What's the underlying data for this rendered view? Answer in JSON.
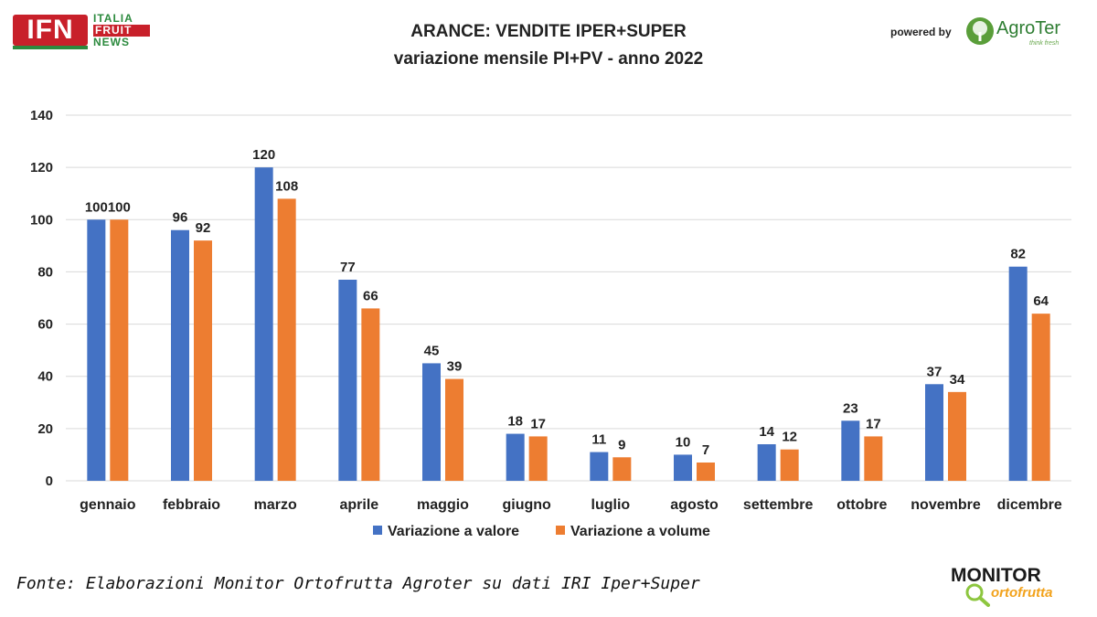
{
  "header": {
    "logo_left": {
      "main": "IFN",
      "line1": "ITALIA",
      "line2": "FRUIT",
      "line3": "NEWS"
    },
    "title_line1": "ARANCE: VENDITE IPER+SUPER",
    "title_line2": "variazione mensile PI+PV - anno 2022",
    "powered_by": "powered by",
    "logo_right": {
      "name": "AgroTer",
      "tagline": "think fresh"
    }
  },
  "chart_data": {
    "type": "bar",
    "categories": [
      "gennaio",
      "febbraio",
      "marzo",
      "aprile",
      "maggio",
      "giugno",
      "luglio",
      "agosto",
      "settembre",
      "ottobre",
      "novembre",
      "dicembre"
    ],
    "series": [
      {
        "name": "Variazione a valore",
        "color": "#4472c4",
        "values": [
          100,
          96,
          120,
          77,
          45,
          18,
          11,
          10,
          14,
          23,
          37,
          82
        ],
        "labels": [
          "100",
          "96",
          "120",
          "77",
          "45",
          "18",
          "11",
          "10",
          "14",
          "23",
          "37",
          "82"
        ]
      },
      {
        "name": "Variazione a volume",
        "color": "#ed7d31",
        "values": [
          100,
          92,
          108,
          66,
          39,
          17,
          9,
          7,
          12,
          17,
          34,
          64
        ],
        "labels": [
          "100",
          "92",
          "108",
          "66",
          "39",
          "17",
          "9",
          "7",
          "12",
          "17",
          "34",
          "64"
        ]
      }
    ],
    "y_ticks": [
      "0",
      "20",
      "40",
      "60",
      "80",
      "100",
      "120",
      "140"
    ],
    "ylim": [
      0,
      140
    ],
    "grid": true,
    "legend_position": "bottom"
  },
  "footer": {
    "source": "Fonte: Elaborazioni Monitor Ortofrutta Agroter su dati IRI Iper+Super",
    "logo_monitor_top": "MONITOR",
    "logo_monitor_bottom": "ortofrutta"
  }
}
